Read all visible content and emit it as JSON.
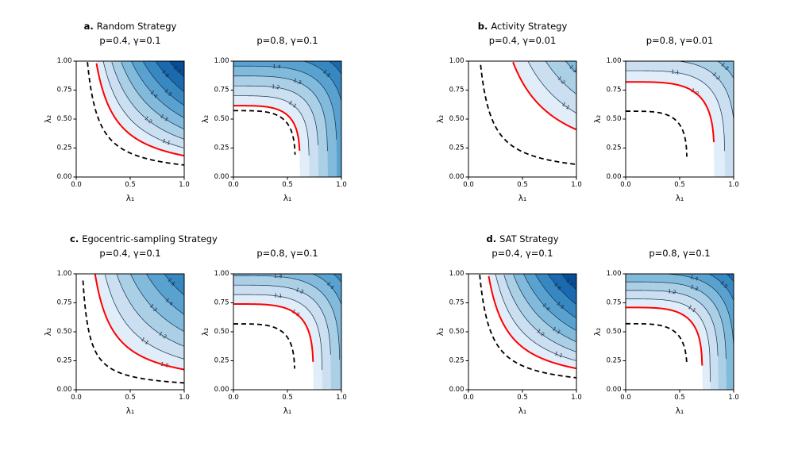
{
  "figure": {
    "background": "#ffffff"
  },
  "style": {
    "colormap": "Blues",
    "colormap_stops": [
      "#f7fbff",
      "#deebf7",
      "#c6dbef",
      "#9ecae1",
      "#6baed6",
      "#4292c6",
      "#2171b5",
      "#08519c",
      "#08306b"
    ],
    "contour_line_color": "#12304f",
    "contour_label_color": "#14283c",
    "red_line_color": "#ff0000",
    "dashed_line_color": "#000000",
    "value_color_range": [
      0.95,
      1.85
    ]
  },
  "axes": {
    "xlabel": "λ₁",
    "ylabel": "λ₂",
    "xlim": [
      0,
      1
    ],
    "ylim": [
      0,
      1
    ],
    "xtick_values": [
      0,
      0.5,
      1
    ],
    "xtick_labels": [
      "0.0",
      "0.5",
      "1.0"
    ],
    "ytick_values": [
      0,
      0.25,
      0.5,
      0.75,
      1
    ],
    "ytick_labels": [
      "0.00",
      "0.25",
      "0.50",
      "0.75",
      "1.00"
    ]
  },
  "chart_data": [
    {
      "type": "contour",
      "panel": "a1",
      "title_prefix": "a.",
      "title_name": "Random Strategy",
      "subtitle": "p=0.4, γ=0.1",
      "model": "geometric",
      "value_map": {
        "v0": 0.4,
        "v1": 1.4
      },
      "fill_levels": [
        1.0,
        1.1,
        1.2,
        1.3,
        1.4,
        1.5,
        1.6,
        1.7,
        1.8
      ],
      "label_levels": [
        1.1,
        1.2,
        1.3,
        1.4,
        1.5,
        1.6,
        1.7
      ],
      "red_level": 1.0,
      "dashed_level": 0.85
    },
    {
      "type": "contour",
      "panel": "a2",
      "title_prefix": "",
      "title_name": "",
      "subtitle": "p=0.8, γ=0.1",
      "model": "pow4",
      "value_map": {
        "v0": 0.28,
        "v1": 1.17
      },
      "fill_levels": [
        1.0,
        1.1,
        1.2,
        1.3,
        1.4,
        1.5,
        1.6
      ],
      "label_levels": [
        1.1,
        1.2,
        1.3,
        1.4,
        1.5
      ],
      "red_level": 1.0,
      "dashed_level": 0.95
    },
    {
      "type": "contour",
      "panel": "b1",
      "title_prefix": "b.",
      "title_name": "Activity Strategy",
      "subtitle": "p=0.4, γ=0.01",
      "model": "geometric",
      "value_map": {
        "v0": 0.38,
        "v1": 0.97
      },
      "fill_levels": [
        1.0,
        1.1,
        1.2,
        1.3
      ],
      "label_levels": [
        1.1,
        1.2,
        1.3
      ],
      "red_level": 1.0,
      "dashed_level": 0.7
    },
    {
      "type": "contour",
      "panel": "b2",
      "title_prefix": "",
      "title_name": "",
      "subtitle": "p=0.8, γ=0.01",
      "model": "pow4",
      "value_map": {
        "v0": 0.155,
        "v1": 1.03
      },
      "fill_levels": [
        1.0,
        1.1,
        1.2,
        1.3
      ],
      "label_levels": [
        1.0,
        1.1,
        1.2,
        1.3
      ],
      "red_level": 1.0,
      "dashed_level": 0.74
    },
    {
      "type": "contour",
      "panel": "c1",
      "title_prefix": "c.",
      "title_name": "Egocentric-sampling Strategy",
      "subtitle": "p=0.4, γ=0.1",
      "model": "geometric",
      "value_map": {
        "v0": 0.57,
        "v1": 1.03
      },
      "fill_levels": [
        1.0,
        1.1,
        1.2,
        1.3,
        1.4,
        1.5,
        1.6
      ],
      "label_levels": [
        1.0,
        1.1,
        1.2,
        1.3,
        1.4,
        1.5
      ],
      "red_level": 1.0,
      "dashed_level": 0.82
    },
    {
      "type": "contour",
      "panel": "c2",
      "title_prefix": "",
      "title_name": "",
      "subtitle": "p=0.8, γ=0.1",
      "model": "pow4",
      "value_map": {
        "v0": 0.094,
        "v1": 1.225
      },
      "fill_levels": [
        1.0,
        1.1,
        1.2,
        1.3,
        1.4,
        1.5
      ],
      "label_levels": [
        1.0,
        1.1,
        1.2,
        1.3,
        1.4
      ],
      "red_level": 1.0,
      "dashed_level": 0.79
    },
    {
      "type": "contour",
      "panel": "d1",
      "title_prefix": "d.",
      "title_name": "SAT Strategy",
      "subtitle": "p=0.4, γ=0.1",
      "model": "geometric",
      "value_map": {
        "v0": 0.4,
        "v1": 1.4
      },
      "fill_levels": [
        1.0,
        1.1,
        1.2,
        1.3,
        1.4,
        1.5,
        1.6,
        1.7,
        1.8
      ],
      "label_levels": [
        1.1,
        1.2,
        1.3,
        1.4,
        1.5,
        1.6,
        1.7
      ],
      "red_level": 1.0,
      "dashed_level": 0.85
    },
    {
      "type": "contour",
      "panel": "d2",
      "title_prefix": "",
      "title_name": "",
      "subtitle": "p=0.8, γ=0.1",
      "model": "pow4",
      "value_map": {
        "v0": 0.037,
        "v1": 1.357
      },
      "fill_levels": [
        1.0,
        1.1,
        1.2,
        1.3,
        1.4,
        1.5,
        1.6
      ],
      "label_levels": [
        1.1,
        1.2,
        1.3,
        1.4,
        1.5
      ],
      "red_level": 1.0,
      "dashed_level": 0.81
    }
  ]
}
